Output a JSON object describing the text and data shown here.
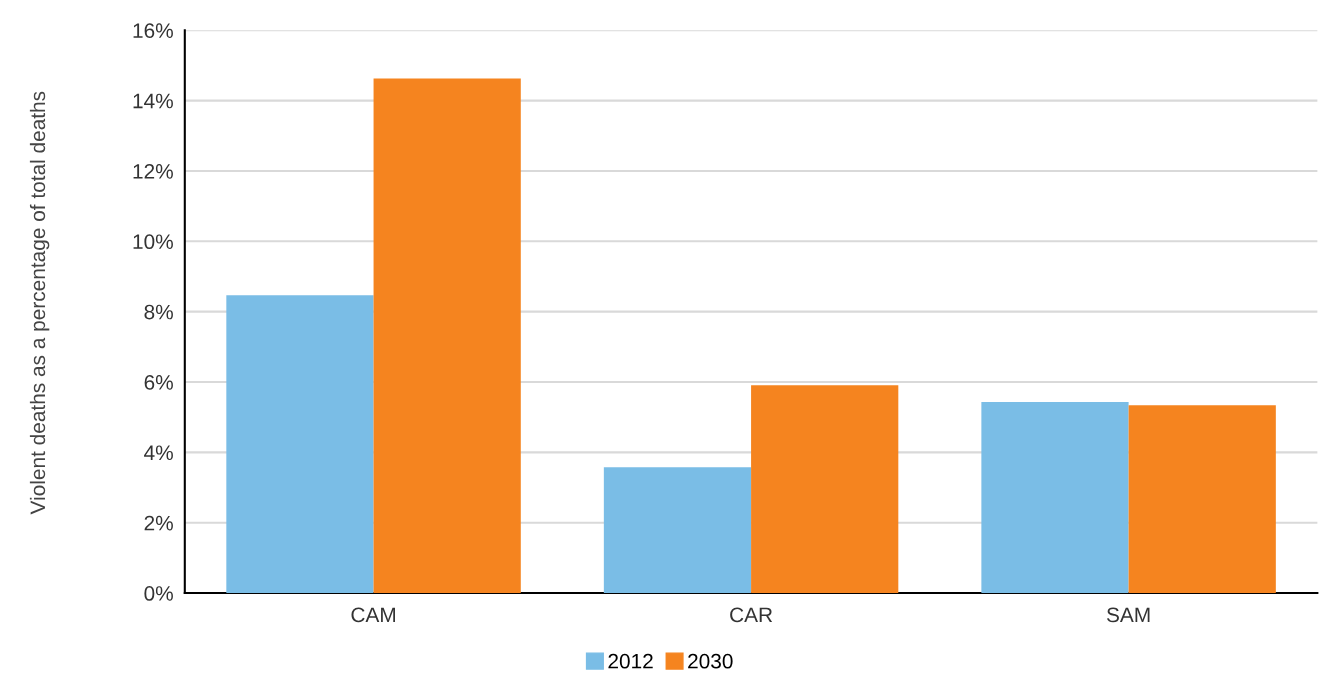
{
  "chart_data": {
    "type": "bar",
    "ylabel": "Violent deaths as a percentage of total deaths",
    "categories": [
      "CAM",
      "CAR",
      "SAM"
    ],
    "series": [
      {
        "name": "2012",
        "color": "#7abde6",
        "values": [
          8.47,
          3.58,
          5.43
        ]
      },
      {
        "name": "2030",
        "color": "#f5841f",
        "values": [
          14.63,
          5.91,
          5.34
        ]
      }
    ],
    "ylim": [
      0,
      16
    ],
    "yticks": [
      {
        "value": 0,
        "label": "0%"
      },
      {
        "value": 2,
        "label": "2%"
      },
      {
        "value": 4,
        "label": "4%"
      },
      {
        "value": 6,
        "label": "6%"
      },
      {
        "value": 8,
        "label": "8%"
      },
      {
        "value": 10,
        "label": "10%"
      },
      {
        "value": 12,
        "label": "12%"
      },
      {
        "value": 14,
        "label": "14%"
      },
      {
        "value": 16,
        "label": "16%"
      }
    ],
    "grid": "y",
    "legend": "bottom"
  }
}
